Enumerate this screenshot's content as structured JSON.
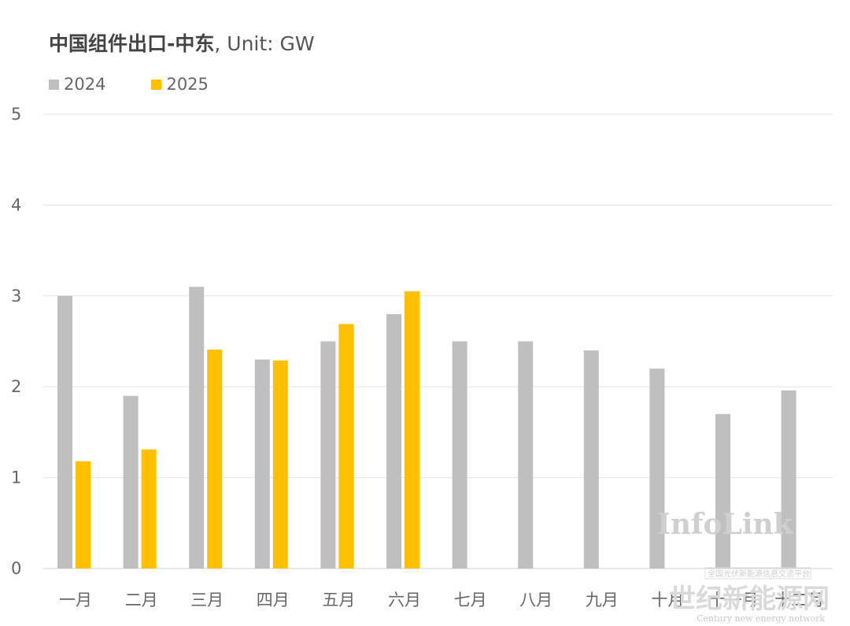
{
  "chart_data": {
    "type": "bar",
    "title_bold": "中国组件出口-中东",
    "title_rest": ", Unit: GW",
    "categories": [
      "一月",
      "二月",
      "三月",
      "四月",
      "五月",
      "六月",
      "七月",
      "八月",
      "九月",
      "十月",
      "十一月",
      "十二月"
    ],
    "series": [
      {
        "name": "2024",
        "color": "#bfbfbf",
        "values": [
          3.0,
          1.9,
          3.1,
          2.3,
          2.5,
          2.8,
          2.5,
          2.5,
          2.4,
          2.2,
          1.7,
          1.96
        ]
      },
      {
        "name": "2025",
        "color": "#ffc000",
        "values": [
          1.18,
          1.31,
          2.41,
          2.29,
          2.69,
          3.05,
          null,
          null,
          null,
          null,
          null,
          null
        ]
      }
    ],
    "y_ticks": [
      "0",
      "1",
      "2",
      "3",
      "4",
      "5"
    ],
    "ylim": [
      0,
      5
    ],
    "grid": true,
    "legend": "top-left"
  },
  "watermarks": {
    "brand": "InfoLink",
    "site_cn": "世纪新能源网",
    "site_en": "Century new energy network",
    "banner": "全国光伏新能源信息交流平台"
  }
}
